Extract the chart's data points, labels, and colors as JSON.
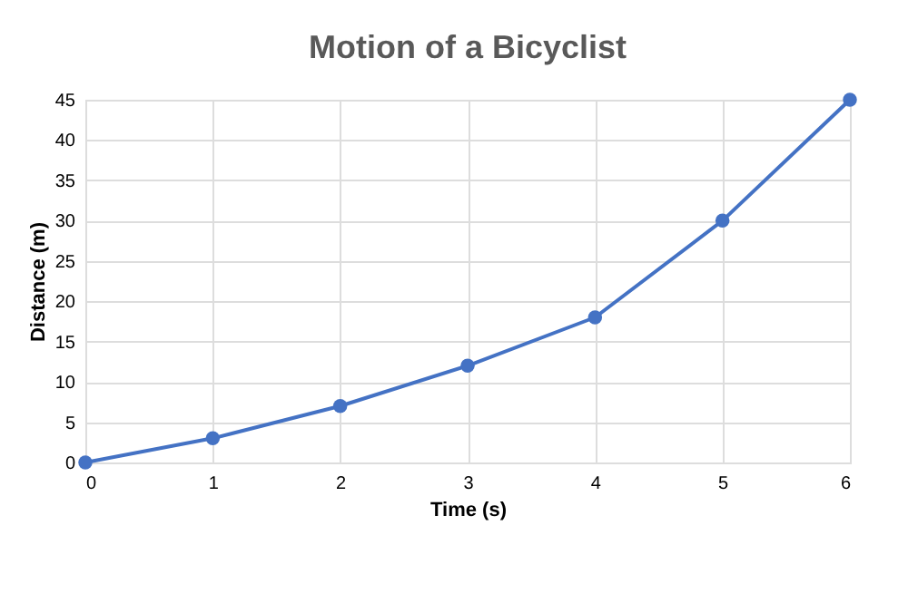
{
  "chart_data": {
    "type": "line",
    "title": "Motion of a Bicyclist",
    "xlabel": "Time (s)",
    "ylabel": "Distance (m)",
    "x": [
      0,
      1,
      2,
      3,
      4,
      5,
      6
    ],
    "series": [
      {
        "color": "#4472c4",
        "values": [
          0,
          3,
          7,
          12,
          18,
          30,
          45
        ]
      }
    ],
    "xlim": [
      0,
      6
    ],
    "xticks": [
      0,
      1,
      2,
      3,
      4,
      5,
      6
    ],
    "ylim": [
      0,
      45
    ],
    "yticks": [
      0,
      5,
      10,
      15,
      20,
      25,
      30,
      35,
      40,
      45
    ],
    "grid": true,
    "marker": "circle",
    "line_style": "solid"
  }
}
